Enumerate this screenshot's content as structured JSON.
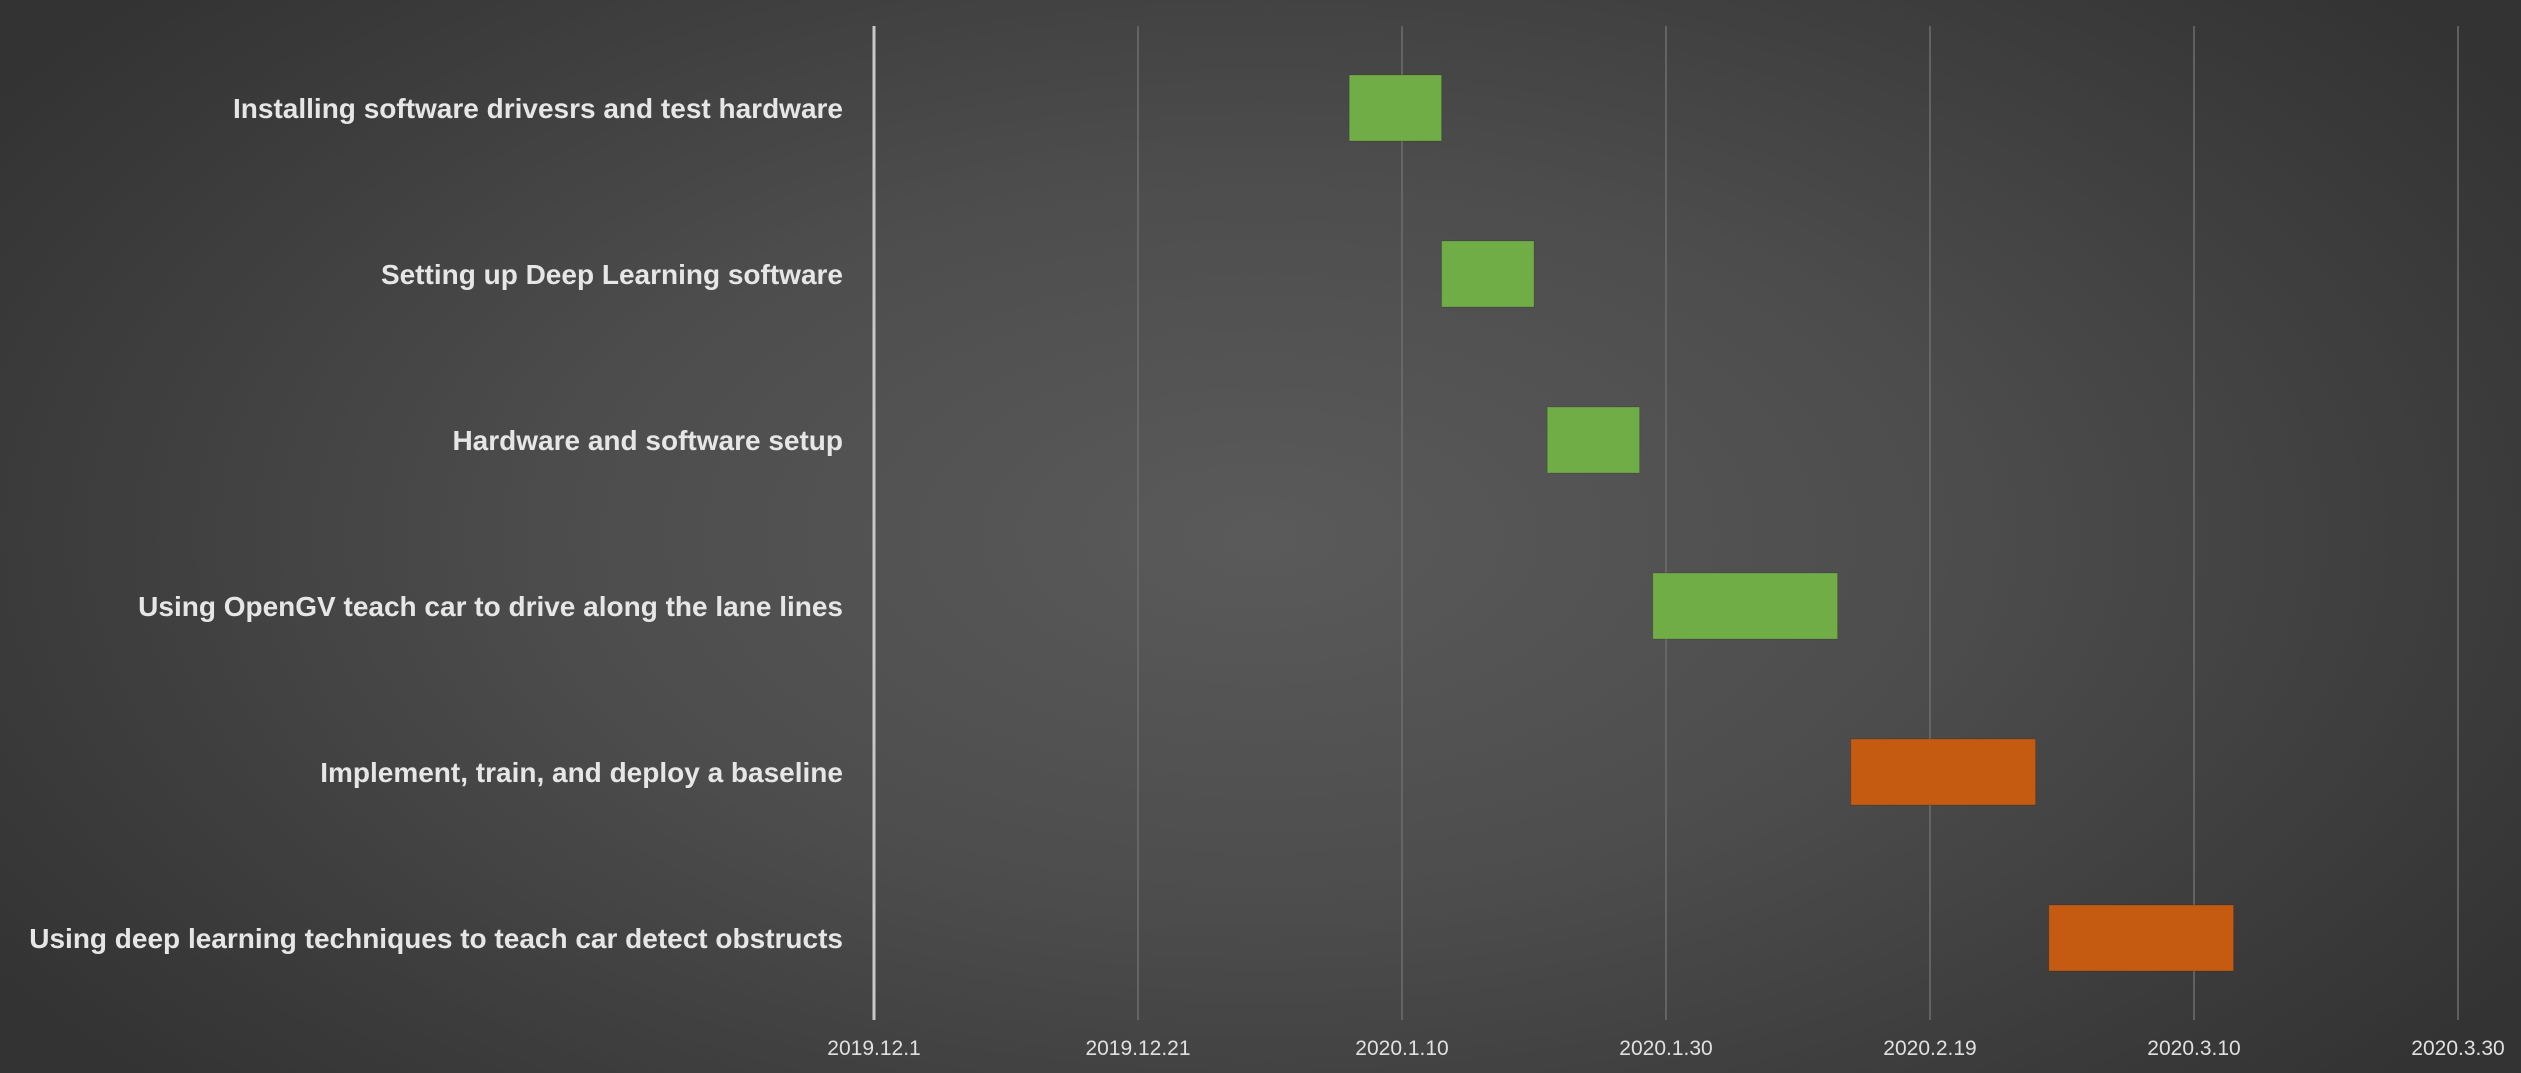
{
  "chart_data": {
    "type": "bar",
    "orientation": "horizontal",
    "subtype": "gantt",
    "title": "",
    "xlabel": "",
    "ylabel": "",
    "x_tick_labels": [
      "2019.12.1",
      "2019.12.21",
      "2020.1.10",
      "2020.1.30",
      "2020.2.19",
      "2020.3.10",
      "2020.3.30"
    ],
    "xlim": [
      "2019-12-01",
      "2020-03-30"
    ],
    "grid": true,
    "legend": "none",
    "tasks": [
      {
        "name": "Installing software drivesrs and test hardware",
        "start": "2020-01-06",
        "end": "2020-01-13",
        "color": "#70ad47"
      },
      {
        "name": "Setting up Deep Learning software",
        "start": "2020-01-13",
        "end": "2020-01-20",
        "color": "#70ad47"
      },
      {
        "name": "Hardware and software setup",
        "start": "2020-01-21",
        "end": "2020-01-28",
        "color": "#70ad47"
      },
      {
        "name": "Using OpenGV teach car to drive along the lane lines",
        "start": "2020-01-29",
        "end": "2020-02-12",
        "color": "#70ad47"
      },
      {
        "name": "Implement, train, and deploy a baseline ",
        "start": "2020-02-13",
        "end": "2020-02-27",
        "color": "#c55a11"
      },
      {
        "name": "Using deep learning techniques to teach car detect obstructs",
        "start": "2020-02-28",
        "end": "2020-03-13",
        "color": "#c55a11"
      }
    ]
  }
}
